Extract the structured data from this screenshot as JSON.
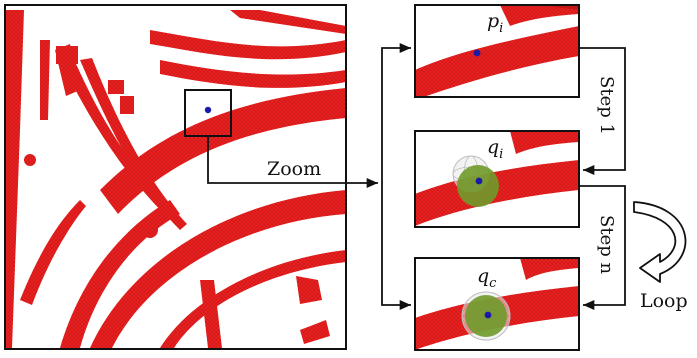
{
  "labels": {
    "zoom": "Zoom",
    "step1": "Step 1",
    "stepn": "Step n",
    "loop": "Loop",
    "p_base": "p",
    "p_sub": "i",
    "q_base": "q",
    "q_sub": "i",
    "qc_base": "q",
    "qc_sub": "c"
  },
  "colors": {
    "vessel": "#ee2222",
    "vessel_dark": "#b80f0f",
    "point": "#1a1aa8",
    "sphere_fill": "#6f9a2a",
    "sphere_mesh": "#bdbdbd",
    "frame": "#111111"
  },
  "icons": [
    "loop-arrow-icon"
  ]
}
